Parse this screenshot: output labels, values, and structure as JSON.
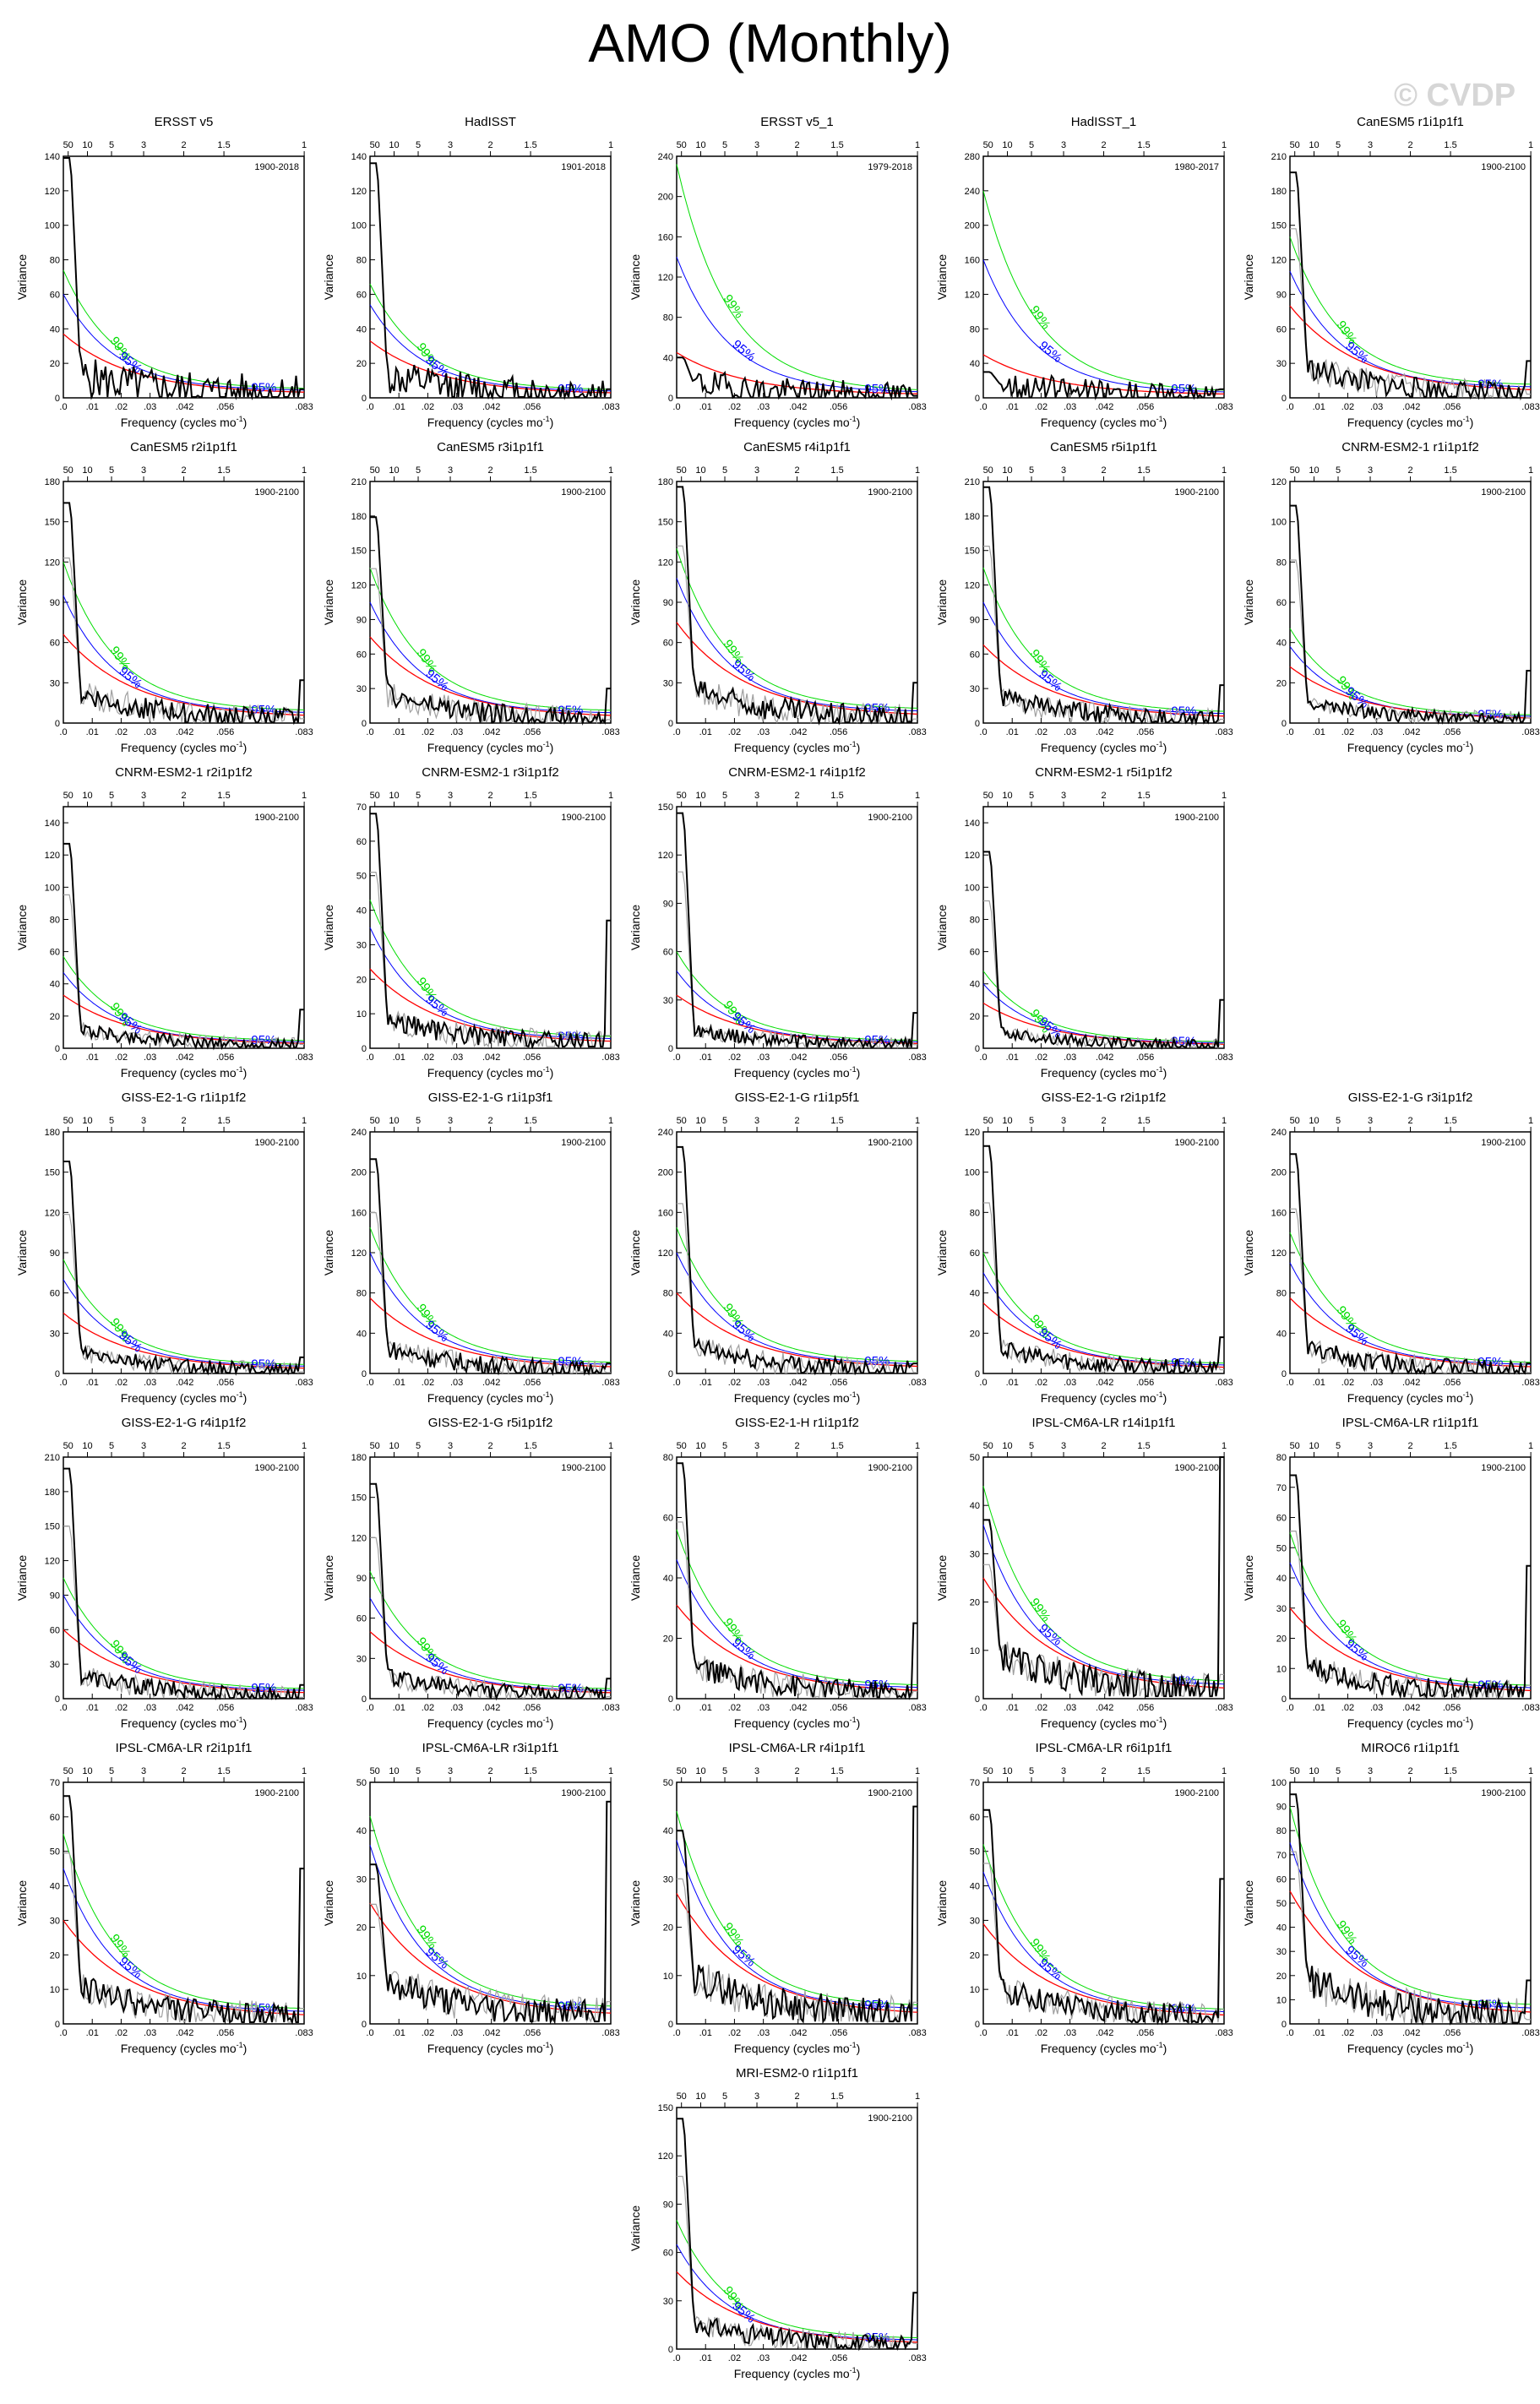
{
  "page": {
    "title": "AMO (Monthly)",
    "watermark": "© CVDP"
  },
  "labels": {
    "xlabel": "Frequency (cycles mo",
    "xlabel_sup": "-1",
    "xlabel_end": ")",
    "ylabel": "Variance",
    "period_ticks": [
      "50",
      "10",
      "5",
      "3",
      "2",
      "1.5",
      "1"
    ],
    "freq_ticks": [
      ".0",
      ".01",
      ".02",
      ".03",
      ".042",
      ".056",
      ".083"
    ],
    "p95": "95%",
    "p99": "99%"
  },
  "colors": {
    "spectrum": "#000000",
    "obs_spectrum": "#a0a0a0",
    "red_noise": "#ff0000",
    "ci95": "#0000ff",
    "ci99": "#00dd00"
  },
  "chart_data": [
    {
      "type": "line",
      "title": "ERSST v5",
      "range": "1900-2018",
      "ylim": [
        0,
        140
      ],
      "yticks": [
        0,
        20,
        40,
        60,
        80,
        100,
        120,
        140
      ],
      "peak": 139,
      "red0": 37,
      "c95_0": 60,
      "c99_0": 74,
      "endv": 5,
      "obs": false
    },
    {
      "type": "line",
      "title": "HadISST",
      "range": "1901-2018",
      "ylim": [
        0,
        140
      ],
      "yticks": [
        0,
        20,
        40,
        60,
        80,
        100,
        120,
        140
      ],
      "peak": 136,
      "red0": 33,
      "c95_0": 54,
      "c99_0": 66,
      "endv": 5,
      "obs": false
    },
    {
      "type": "line",
      "title": "ERSST v5_1",
      "range": "1979-2018",
      "ylim": [
        0,
        240
      ],
      "yticks": [
        0,
        40,
        80,
        120,
        160,
        200,
        240
      ],
      "peak": 40,
      "red0": 45,
      "c95_0": 140,
      "c99_0": 232,
      "endv": 2,
      "obs": false
    },
    {
      "type": "line",
      "title": "HadISST_1",
      "range": "1980-2017",
      "ylim": [
        0,
        280
      ],
      "yticks": [
        0,
        40,
        80,
        120,
        160,
        200,
        240,
        280
      ],
      "peak": 30,
      "red0": 50,
      "c95_0": 160,
      "c99_0": 240,
      "endv": 10,
      "obs": false
    },
    {
      "type": "line",
      "title": "CanESM5 r1i1p1f1",
      "range": "1900-2100",
      "ylim": [
        0,
        210
      ],
      "yticks": [
        0,
        30,
        60,
        90,
        120,
        150,
        180,
        210
      ],
      "peak": 196,
      "red0": 80,
      "c95_0": 110,
      "c99_0": 140,
      "endv": 32,
      "obs": true
    },
    {
      "type": "line",
      "title": "CanESM5 r2i1p1f1",
      "range": "1900-2100",
      "ylim": [
        0,
        180
      ],
      "yticks": [
        0,
        30,
        60,
        90,
        120,
        150,
        180
      ],
      "peak": 164,
      "red0": 66,
      "c95_0": 95,
      "c99_0": 120,
      "endv": 32,
      "obs": true
    },
    {
      "type": "line",
      "title": "CanESM5 r3i1p1f1",
      "range": "1900-2100",
      "ylim": [
        0,
        210
      ],
      "yticks": [
        0,
        30,
        60,
        90,
        120,
        150,
        180,
        210
      ],
      "peak": 179,
      "red0": 75,
      "c95_0": 105,
      "c99_0": 135,
      "endv": 30,
      "obs": true
    },
    {
      "type": "line",
      "title": "CanESM5 r4i1p1f1",
      "range": "1900-2100",
      "ylim": [
        0,
        180
      ],
      "yticks": [
        0,
        30,
        60,
        90,
        120,
        150,
        180
      ],
      "peak": 176,
      "red0": 75,
      "c95_0": 108,
      "c99_0": 130,
      "endv": 30,
      "obs": true
    },
    {
      "type": "line",
      "title": "CanESM5 r5i1p1f1",
      "range": "1900-2100",
      "ylim": [
        0,
        210
      ],
      "yticks": [
        0,
        30,
        60,
        90,
        120,
        150,
        180,
        210
      ],
      "peak": 205,
      "red0": 68,
      "c95_0": 105,
      "c99_0": 135,
      "endv": 33,
      "obs": true
    },
    {
      "type": "line",
      "title": "CNRM-ESM2-1 r1i1p1f2",
      "range": "1900-2100",
      "ylim": [
        0,
        120
      ],
      "yticks": [
        0,
        20,
        40,
        60,
        80,
        100,
        120
      ],
      "peak": 108,
      "red0": 28,
      "c95_0": 38,
      "c99_0": 47,
      "endv": 26,
      "obs": true
    },
    {
      "type": "line",
      "title": "CNRM-ESM2-1 r2i1p1f2",
      "range": "1900-2100",
      "ylim": [
        0,
        150
      ],
      "yticks": [
        0,
        20,
        40,
        60,
        80,
        100,
        120,
        140
      ],
      "peak": 127,
      "red0": 33,
      "c95_0": 47,
      "c99_0": 57,
      "endv": 24,
      "obs": true
    },
    {
      "type": "line",
      "title": "CNRM-ESM2-1 r3i1p1f2",
      "range": "1900-2100",
      "ylim": [
        0,
        70
      ],
      "yticks": [
        0,
        10,
        20,
        30,
        40,
        50,
        60,
        70
      ],
      "peak": 68,
      "red0": 23,
      "c95_0": 35,
      "c99_0": 43,
      "endv": 37,
      "obs": true
    },
    {
      "type": "line",
      "title": "CNRM-ESM2-1 r4i1p1f2",
      "range": "1900-2100",
      "ylim": [
        0,
        150
      ],
      "yticks": [
        0,
        30,
        60,
        90,
        120,
        150
      ],
      "peak": 146,
      "red0": 33,
      "c95_0": 48,
      "c99_0": 60,
      "endv": 22,
      "obs": true
    },
    {
      "type": "line",
      "title": "CNRM-ESM2-1 r5i1p1f2",
      "range": "1900-2100",
      "ylim": [
        0,
        150
      ],
      "yticks": [
        0,
        20,
        40,
        60,
        80,
        100,
        120,
        140
      ],
      "peak": 122,
      "red0": 28,
      "c95_0": 40,
      "c99_0": 48,
      "endv": 30,
      "obs": true
    },
    {
      "type": "line",
      "title": "GISS-E2-1-G r1i1p1f2",
      "range": "1900-2100",
      "ylim": [
        0,
        180
      ],
      "yticks": [
        0,
        30,
        60,
        90,
        120,
        150,
        180
      ],
      "peak": 158,
      "red0": 45,
      "c95_0": 70,
      "c99_0": 85,
      "endv": 12,
      "obs": true
    },
    {
      "type": "line",
      "title": "GISS-E2-1-G r1i1p3f1",
      "range": "1900-2100",
      "ylim": [
        0,
        240
      ],
      "yticks": [
        0,
        40,
        80,
        120,
        160,
        200,
        240
      ],
      "peak": 213,
      "red0": 75,
      "c95_0": 120,
      "c99_0": 145,
      "endv": 10,
      "obs": true
    },
    {
      "type": "line",
      "title": "GISS-E2-1-G r1i1p5f1",
      "range": "1900-2100",
      "ylim": [
        0,
        240
      ],
      "yticks": [
        0,
        40,
        80,
        120,
        160,
        200,
        240
      ],
      "peak": 225,
      "red0": 80,
      "c95_0": 120,
      "c99_0": 145,
      "endv": 10,
      "obs": true
    },
    {
      "type": "line",
      "title": "GISS-E2-1-G r2i1p1f2",
      "range": "1900-2100",
      "ylim": [
        0,
        120
      ],
      "yticks": [
        0,
        20,
        40,
        60,
        80,
        100,
        120
      ],
      "peak": 113,
      "red0": 35,
      "c95_0": 50,
      "c99_0": 60,
      "endv": 18,
      "obs": true
    },
    {
      "type": "line",
      "title": "GISS-E2-1-G r3i1p1f2",
      "range": "1900-2100",
      "ylim": [
        0,
        240
      ],
      "yticks": [
        0,
        40,
        80,
        120,
        160,
        200,
        240
      ],
      "peak": 218,
      "red0": 75,
      "c95_0": 110,
      "c99_0": 140,
      "endv": 10,
      "obs": true
    },
    {
      "type": "line",
      "title": "GISS-E2-1-G r4i1p1f2",
      "range": "1900-2100",
      "ylim": [
        0,
        210
      ],
      "yticks": [
        0,
        30,
        60,
        90,
        120,
        150,
        180,
        210
      ],
      "peak": 200,
      "red0": 60,
      "c95_0": 90,
      "c99_0": 105,
      "endv": 12,
      "obs": true
    },
    {
      "type": "line",
      "title": "GISS-E2-1-G r5i1p1f2",
      "range": "1900-2100",
      "ylim": [
        0,
        180
      ],
      "yticks": [
        0,
        30,
        60,
        90,
        120,
        150,
        180
      ],
      "peak": 160,
      "red0": 50,
      "c95_0": 75,
      "c99_0": 95,
      "endv": 15,
      "obs": true
    },
    {
      "type": "line",
      "title": "GISS-E2-1-H r1i1p1f2",
      "range": "1900-2100",
      "ylim": [
        0,
        80
      ],
      "yticks": [
        0,
        20,
        40,
        60,
        80
      ],
      "peak": 78,
      "red0": 31,
      "c95_0": 46,
      "c99_0": 56,
      "endv": 25,
      "obs": true
    },
    {
      "type": "line",
      "title": "IPSL-CM6A-LR r14i1p1f1",
      "range": "1900-2100",
      "ylim": [
        0,
        50
      ],
      "yticks": [
        0,
        10,
        20,
        30,
        40,
        50
      ],
      "peak": 37,
      "red0": 25,
      "c95_0": 36,
      "c99_0": 44,
      "endv": 50,
      "obs": true
    },
    {
      "type": "line",
      "title": "IPSL-CM6A-LR r1i1p1f1",
      "range": "1900-2100",
      "ylim": [
        0,
        80
      ],
      "yticks": [
        0,
        10,
        20,
        30,
        40,
        50,
        60,
        70,
        80
      ],
      "peak": 74,
      "red0": 30,
      "c95_0": 45,
      "c99_0": 55,
      "endv": 44,
      "obs": true
    },
    {
      "type": "line",
      "title": "IPSL-CM6A-LR r2i1p1f1",
      "range": "1900-2100",
      "ylim": [
        0,
        70
      ],
      "yticks": [
        0,
        10,
        20,
        30,
        40,
        50,
        60,
        70
      ],
      "peak": 66,
      "red0": 30,
      "c95_0": 45,
      "c99_0": 55,
      "endv": 45,
      "obs": true
    },
    {
      "type": "line",
      "title": "IPSL-CM6A-LR r3i1p1f1",
      "range": "1900-2100",
      "ylim": [
        0,
        50
      ],
      "yticks": [
        0,
        10,
        20,
        30,
        40,
        50
      ],
      "peak": 33,
      "red0": 25,
      "c95_0": 37,
      "c99_0": 43,
      "endv": 46,
      "obs": true
    },
    {
      "type": "line",
      "title": "IPSL-CM6A-LR r4i1p1f1",
      "range": "1900-2100",
      "ylim": [
        0,
        50
      ],
      "yticks": [
        0,
        10,
        20,
        30,
        40,
        50
      ],
      "peak": 40,
      "red0": 27,
      "c95_0": 38,
      "c99_0": 44,
      "endv": 45,
      "obs": true
    },
    {
      "type": "line",
      "title": "IPSL-CM6A-LR r6i1p1f1",
      "range": "1900-2100",
      "ylim": [
        0,
        70
      ],
      "yticks": [
        0,
        10,
        20,
        30,
        40,
        50,
        60,
        70
      ],
      "peak": 62,
      "red0": 29,
      "c95_0": 44,
      "c99_0": 52,
      "endv": 42,
      "obs": true
    },
    {
      "type": "line",
      "title": "MIROC6 r1i1p1f1",
      "range": "1900-2100",
      "ylim": [
        0,
        100
      ],
      "yticks": [
        0,
        10,
        20,
        30,
        40,
        50,
        60,
        70,
        80,
        90,
        100
      ],
      "peak": 95,
      "red0": 55,
      "c95_0": 75,
      "c99_0": 90,
      "endv": 18,
      "obs": true
    },
    {
      "type": "line",
      "title": "MRI-ESM2-0 r1i1p1f1",
      "range": "1900-2100",
      "ylim": [
        0,
        150
      ],
      "yticks": [
        0,
        30,
        60,
        90,
        120,
        150
      ],
      "peak": 143,
      "red0": 48,
      "c95_0": 65,
      "c99_0": 80,
      "endv": 35,
      "obs": true
    }
  ]
}
